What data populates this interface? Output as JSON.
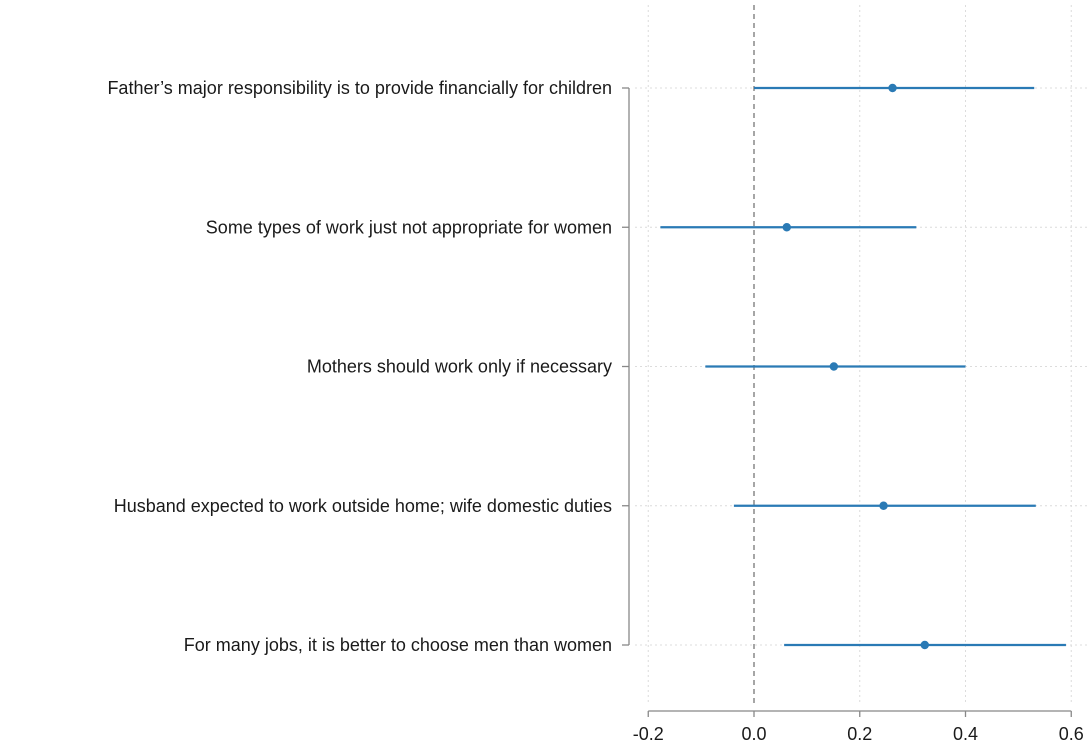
{
  "chart_data": {
    "type": "scatter",
    "title": "",
    "xlabel": "",
    "ylabel": "",
    "xlim": [
      -0.2,
      0.6
    ],
    "xticks": [
      -0.2,
      0.0,
      0.2,
      0.4,
      0.6
    ],
    "xtick_labels": [
      "-0.2",
      "0.0",
      "0.2",
      "0.4",
      "0.6"
    ],
    "reference_line": 0.0,
    "grid": true,
    "categories": [
      "Father’s major responsibility is to provide financially for children",
      "Some types of work just not appropriate for women",
      "Mothers should work only if necessary",
      "Husband expected to work outside home; wife domestic duties",
      "For many jobs, it is better to choose men than women"
    ],
    "series": [
      {
        "estimates": [
          0.262,
          0.062,
          0.151,
          0.245,
          0.323
        ],
        "ci_low": [
          0.0,
          -0.177,
          -0.092,
          -0.038,
          0.057
        ],
        "ci_high": [
          0.53,
          0.307,
          0.4,
          0.533,
          0.59
        ]
      }
    ],
    "colors": {
      "estimate": "#2a7ab5",
      "axis": "#888888",
      "grid": "#dcdcdc",
      "reference": "#777777"
    }
  }
}
